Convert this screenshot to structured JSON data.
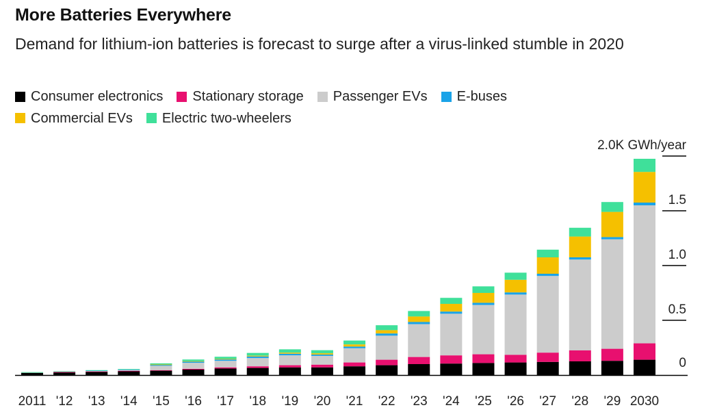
{
  "header": {
    "title": "More Batteries Everywhere",
    "subtitle": "Demand for lithium-ion batteries is forecast to surge after a virus-linked stumble in 2020"
  },
  "chart_data": {
    "type": "bar",
    "stacked": true,
    "unit_label": "2.0K GWh/year",
    "y_tick_labels": [
      "0",
      "0.5",
      "1.0",
      "1.5",
      "2.0K GWh/year"
    ],
    "y_ticks": [
      0,
      0.5,
      1.0,
      1.5,
      2.0
    ],
    "ylim": [
      0,
      2.0
    ],
    "legend_position": "top-left",
    "categories": [
      "2011",
      "'12",
      "'13",
      "'14",
      "'15",
      "'16",
      "'17",
      "'18",
      "'19",
      "'20",
      "'21",
      "'22",
      "'23",
      "'24",
      "'25",
      "'26",
      "'27",
      "'28",
      "'29",
      "2030"
    ],
    "series": [
      {
        "name": "Consumer electronics",
        "color": "#000000",
        "values": [
          0.02,
          0.025,
          0.03,
          0.035,
          0.04,
          0.05,
          0.06,
          0.065,
          0.07,
          0.07,
          0.08,
          0.09,
          0.1,
          0.105,
          0.11,
          0.115,
          0.12,
          0.125,
          0.13,
          0.14
        ]
      },
      {
        "name": "Stationary storage",
        "color": "#e8106f",
        "values": [
          0.0,
          0.003,
          0.003,
          0.004,
          0.005,
          0.007,
          0.01,
          0.015,
          0.02,
          0.025,
          0.035,
          0.05,
          0.065,
          0.075,
          0.08,
          0.07,
          0.085,
          0.1,
          0.11,
          0.15
        ]
      },
      {
        "name": "Passenger EVs",
        "color": "#cccccc",
        "values": [
          0.005,
          0.005,
          0.008,
          0.01,
          0.04,
          0.055,
          0.06,
          0.075,
          0.09,
          0.08,
          0.13,
          0.22,
          0.3,
          0.38,
          0.45,
          0.55,
          0.7,
          0.83,
          1.0,
          1.26
        ]
      },
      {
        "name": "E-buses",
        "color": "#1aa3e8",
        "values": [
          0.0,
          0.0,
          0.001,
          0.002,
          0.01,
          0.012,
          0.012,
          0.015,
          0.015,
          0.012,
          0.015,
          0.02,
          0.02,
          0.02,
          0.02,
          0.02,
          0.02,
          0.02,
          0.02,
          0.025
        ]
      },
      {
        "name": "Commercial EVs",
        "color": "#f5c000",
        "values": [
          0.0,
          0.0,
          0.0,
          0.0,
          0.002,
          0.003,
          0.005,
          0.007,
          0.01,
          0.012,
          0.02,
          0.03,
          0.05,
          0.07,
          0.09,
          0.115,
          0.15,
          0.19,
          0.23,
          0.28
        ]
      },
      {
        "name": "Electric two-wheelers",
        "color": "#3fe09a",
        "values": [
          0.002,
          0.002,
          0.003,
          0.004,
          0.01,
          0.015,
          0.02,
          0.025,
          0.03,
          0.028,
          0.035,
          0.045,
          0.05,
          0.055,
          0.06,
          0.065,
          0.07,
          0.08,
          0.09,
          0.12
        ]
      }
    ]
  }
}
